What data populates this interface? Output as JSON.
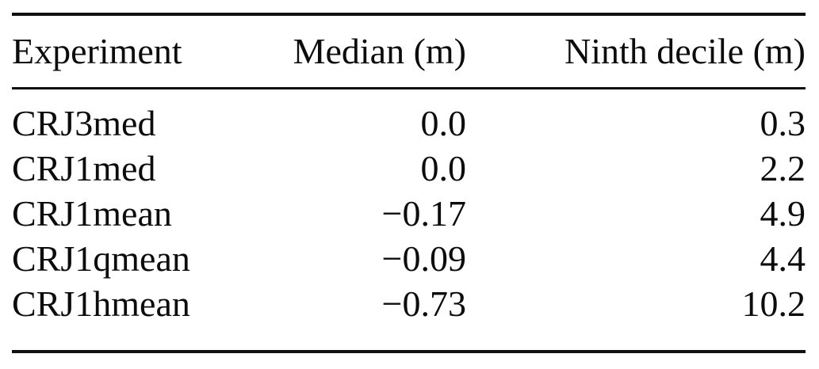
{
  "figure": {
    "type": "table",
    "columns": [
      {
        "key": "experiment",
        "label": "Experiment",
        "align": "left"
      },
      {
        "key": "median",
        "label": "Median (m)",
        "align": "right"
      },
      {
        "key": "ninth_decile",
        "label": "Ninth decile (m)",
        "align": "right"
      }
    ],
    "rows": [
      {
        "experiment": "CRJ3med",
        "median": "0.0",
        "ninth_decile": "0.3"
      },
      {
        "experiment": "CRJ1med",
        "median": "0.0",
        "ninth_decile": "2.2"
      },
      {
        "experiment": "CRJ1mean",
        "median": "−0.17",
        "ninth_decile": "4.9"
      },
      {
        "experiment": "CRJ1qmean",
        "median": "−0.09",
        "ninth_decile": "4.4"
      },
      {
        "experiment": "CRJ1hmean",
        "median": "−0.73",
        "ninth_decile": "10.2"
      }
    ],
    "colors": {
      "text": "#0c0c0c",
      "rule": "#111111",
      "background": "#ffffff"
    }
  }
}
